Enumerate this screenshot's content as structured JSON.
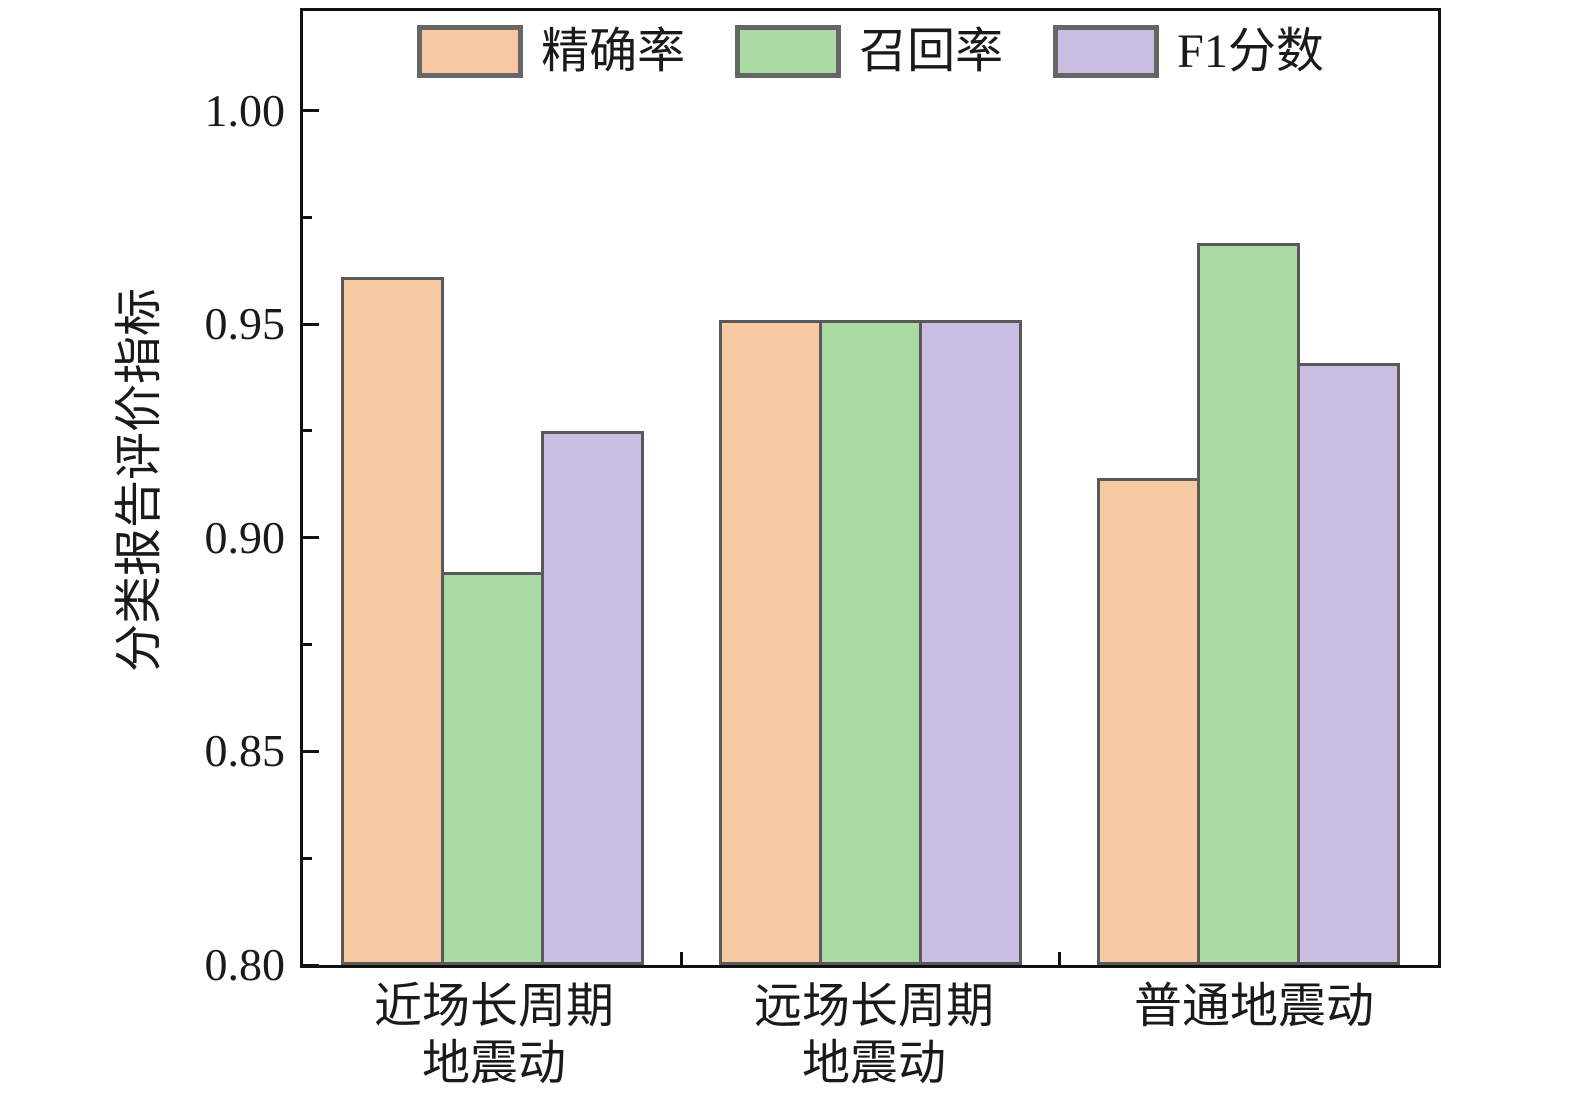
{
  "chart_data": {
    "type": "bar",
    "title": "",
    "categories": [
      "近场长周期\n地震动",
      "远场长周期\n地震动",
      "普通地震动"
    ],
    "series": [
      {
        "name": "精确率",
        "color": "#F6C9A3",
        "values": [
          0.961,
          0.951,
          0.914
        ]
      },
      {
        "name": "召回率",
        "color": "#A9DAA3",
        "values": [
          0.892,
          0.951,
          0.969
        ]
      },
      {
        "name": "F1分数",
        "color": "#C9BDE2",
        "values": [
          0.925,
          0.951,
          0.941
        ]
      }
    ],
    "xlabel": "",
    "ylabel": "分类报告评价指标",
    "ylim": [
      0.8,
      1.0233
    ],
    "ytick_labels": [
      "1.00",
      "0.95",
      "0.90",
      "0.85",
      "0.80"
    ],
    "ytick_values": [
      1.0,
      0.95,
      0.9,
      0.85,
      0.8
    ],
    "minor_ytick_values": [
      0.975,
      0.925,
      0.875,
      0.825
    ],
    "bar_edge_color": "#595959",
    "axis_color": "#111111",
    "legend_swatch_border_color": "#666666",
    "legend_position": "top-center-inside",
    "grid": false
  }
}
